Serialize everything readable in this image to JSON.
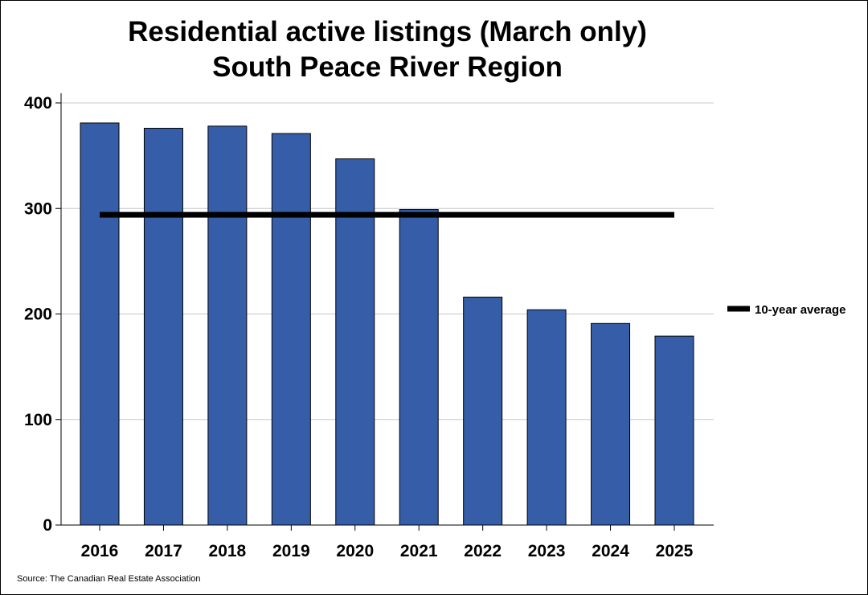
{
  "chart_data": {
    "type": "bar",
    "title": [
      "Residential active listings (March only)",
      "South Peace River Region"
    ],
    "categories": [
      "2016",
      "2017",
      "2018",
      "2019",
      "2020",
      "2021",
      "2022",
      "2023",
      "2024",
      "2025"
    ],
    "series": [
      {
        "values": [
          381,
          376,
          378,
          371,
          347,
          299,
          216,
          204,
          191,
          179
        ],
        "color": "#365ea8"
      }
    ],
    "reference_line": {
      "name": "10-year average",
      "value": 294,
      "color": "#000000"
    },
    "ylim": [
      0,
      400
    ],
    "yticks": [
      0,
      100,
      200,
      300,
      400
    ],
    "ytick_labels": [
      "0",
      "100",
      "200",
      "300",
      "400"
    ],
    "grid": true,
    "legend_placement": "right",
    "source": "Source: The Canadian Real Estate Association"
  }
}
